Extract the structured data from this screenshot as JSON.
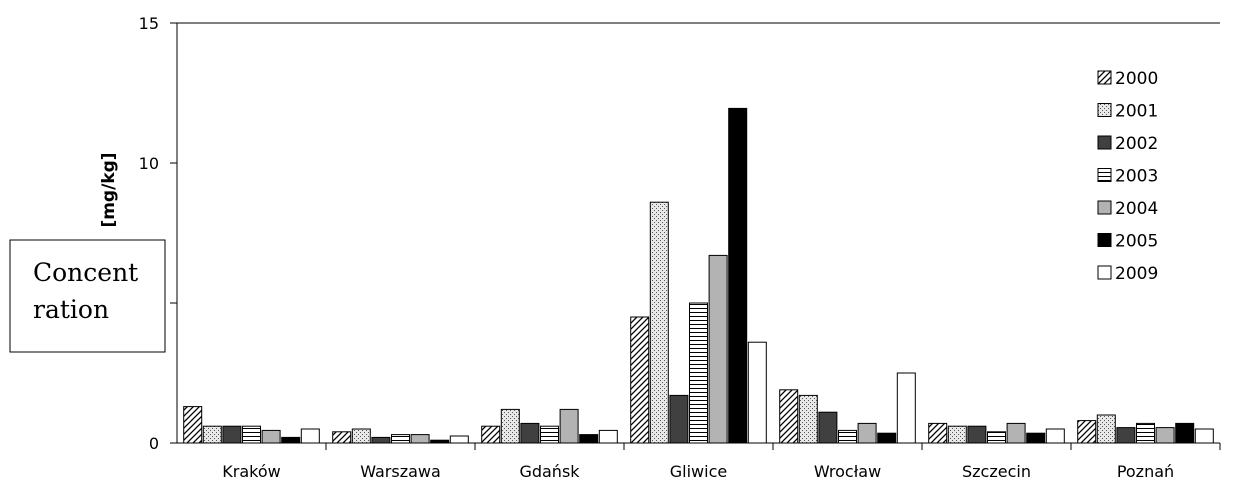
{
  "chart_data": {
    "type": "bar",
    "title": "",
    "xlabel": "",
    "ylabel": "[mg/kg]",
    "ylim": [
      0,
      15
    ],
    "yticks": [
      "0",
      "",
      "10",
      "15"
    ],
    "grid": false,
    "legend_position": "top-right",
    "categories": [
      "Kraków",
      "Warszawa",
      "Gdańsk",
      "Gliwice",
      "Wrocław",
      "Szczecin",
      "Poznań"
    ],
    "series": [
      {
        "name": "2000",
        "pattern": "diagonal-hatch",
        "color": "#ffffff",
        "values": [
          1.3,
          0.4,
          0.6,
          4.5,
          1.9,
          0.7,
          0.8
        ]
      },
      {
        "name": "2001",
        "pattern": "dots",
        "color": "#e6e6e6",
        "values": [
          0.6,
          0.5,
          1.2,
          8.6,
          1.7,
          0.6,
          1.0
        ]
      },
      {
        "name": "2002",
        "pattern": "solid",
        "color": "#404040",
        "values": [
          0.6,
          0.2,
          0.7,
          1.7,
          1.1,
          0.6,
          0.55
        ]
      },
      {
        "name": "2003",
        "pattern": "horizontal-lines",
        "color": "#ffffff",
        "values": [
          0.6,
          0.3,
          0.6,
          5.0,
          0.45,
          0.4,
          0.7
        ]
      },
      {
        "name": "2004",
        "pattern": "solid",
        "color": "#b3b3b3",
        "values": [
          0.45,
          0.3,
          1.2,
          6.7,
          0.7,
          0.7,
          0.55
        ]
      },
      {
        "name": "2005",
        "pattern": "solid",
        "color": "#000000",
        "values": [
          0.2,
          0.1,
          0.3,
          11.95,
          0.35,
          0.35,
          0.7
        ]
      },
      {
        "name": "2009",
        "pattern": "solid",
        "color": "#ffffff",
        "values": [
          0.5,
          0.25,
          0.45,
          3.6,
          2.5,
          0.5,
          0.5
        ]
      }
    ],
    "note": {
      "lines": [
        "Concent",
        "ration"
      ]
    }
  }
}
